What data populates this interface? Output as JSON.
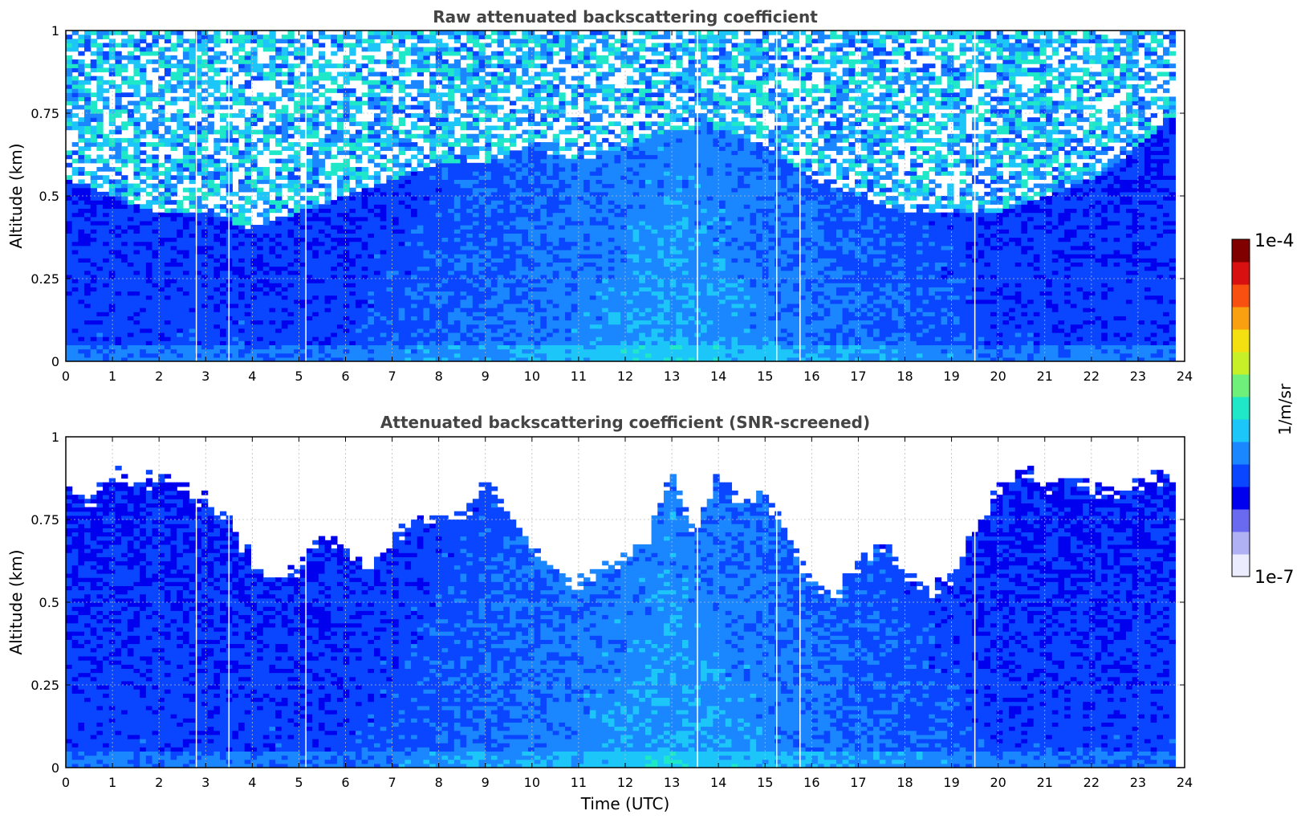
{
  "chart_data": [
    {
      "type": "heatmap",
      "title": "Raw attenuated backscattering coefficient",
      "xlabel": "",
      "ylabel": "Altitude (km)",
      "xlim": [
        0,
        24
      ],
      "ylim": [
        0,
        1
      ],
      "x_ticks": [
        "0",
        "1",
        "2",
        "3",
        "4",
        "5",
        "6",
        "7",
        "8",
        "9",
        "10",
        "11",
        "12",
        "13",
        "14",
        "15",
        "16",
        "17",
        "18",
        "19",
        "20",
        "21",
        "22",
        "23",
        "24"
      ],
      "y_ticks": [
        "0",
        "0.25",
        "0.5",
        "0.75",
        "1"
      ],
      "grid": true,
      "data_end_time": 23.8,
      "gap_times": [
        2.8,
        3.5,
        5.15,
        13.55,
        15.25,
        15.75,
        19.5
      ],
      "signal_profile": {
        "x": [
          0,
          1,
          2,
          3,
          4,
          5,
          6,
          7,
          8,
          9,
          10,
          11,
          12,
          13,
          14,
          15,
          16,
          17,
          18,
          19,
          20,
          21,
          22,
          23,
          23.8
        ],
        "noise_onset_altitude_km": [
          0.55,
          0.5,
          0.45,
          0.45,
          0.4,
          0.45,
          0.5,
          0.55,
          0.6,
          0.6,
          0.65,
          0.6,
          0.65,
          0.7,
          0.7,
          0.65,
          0.55,
          0.5,
          0.45,
          0.45,
          0.45,
          0.5,
          0.55,
          0.65,
          0.75
        ]
      }
    },
    {
      "type": "heatmap",
      "title": "Attenuated backscattering coefficient (SNR-screened)",
      "xlabel": "Time (UTC)",
      "ylabel": "Altitude (km)",
      "xlim": [
        0,
        24
      ],
      "ylim": [
        0,
        1
      ],
      "x_ticks": [
        "0",
        "1",
        "2",
        "3",
        "4",
        "5",
        "6",
        "7",
        "8",
        "9",
        "10",
        "11",
        "12",
        "13",
        "14",
        "15",
        "16",
        "17",
        "18",
        "19",
        "20",
        "21",
        "22",
        "23",
        "24"
      ],
      "y_ticks": [
        "0",
        "0.25",
        "0.5",
        "0.75",
        "1"
      ],
      "grid": true,
      "data_end_time": 23.8,
      "gap_times": [
        2.8,
        3.5,
        5.15,
        13.55,
        15.25,
        15.75,
        19.5
      ],
      "valid_top_altitude_km": {
        "x": [
          0,
          0.5,
          1,
          1.5,
          2,
          2.5,
          3,
          3.5,
          4,
          4.5,
          5,
          5.5,
          6,
          6.5,
          7,
          7.5,
          8,
          8.5,
          9,
          9.5,
          10,
          10.5,
          11,
          11.5,
          12,
          12.5,
          13,
          13.5,
          14,
          14.5,
          15,
          15.5,
          16,
          16.5,
          17,
          17.5,
          18,
          18.5,
          19,
          19.5,
          20,
          20.5,
          21,
          21.5,
          22,
          22.5,
          23,
          23.5,
          23.8
        ],
        "y": [
          0.85,
          0.8,
          0.9,
          0.85,
          0.88,
          0.85,
          0.8,
          0.75,
          0.62,
          0.58,
          0.6,
          0.7,
          0.65,
          0.6,
          0.68,
          0.75,
          0.75,
          0.76,
          0.85,
          0.78,
          0.65,
          0.6,
          0.55,
          0.6,
          0.62,
          0.7,
          0.88,
          0.7,
          0.9,
          0.8,
          0.82,
          0.7,
          0.55,
          0.52,
          0.62,
          0.68,
          0.6,
          0.52,
          0.58,
          0.72,
          0.85,
          0.9,
          0.85,
          0.88,
          0.85,
          0.82,
          0.86,
          0.88,
          0.85
        ]
      }
    }
  ],
  "colorbar": {
    "label": "1/m/sr",
    "min_label": "1e-7",
    "max_label": "1e-4",
    "scale": "log",
    "colormap": [
      "#ececff",
      "#b0b0f4",
      "#6a6af0",
      "#0000ee",
      "#0a46ff",
      "#1a86ff",
      "#1cc6f8",
      "#1ee8c8",
      "#6ef07a",
      "#c8f028",
      "#f4e010",
      "#f8a010",
      "#f85010",
      "#d81010",
      "#800000"
    ]
  }
}
